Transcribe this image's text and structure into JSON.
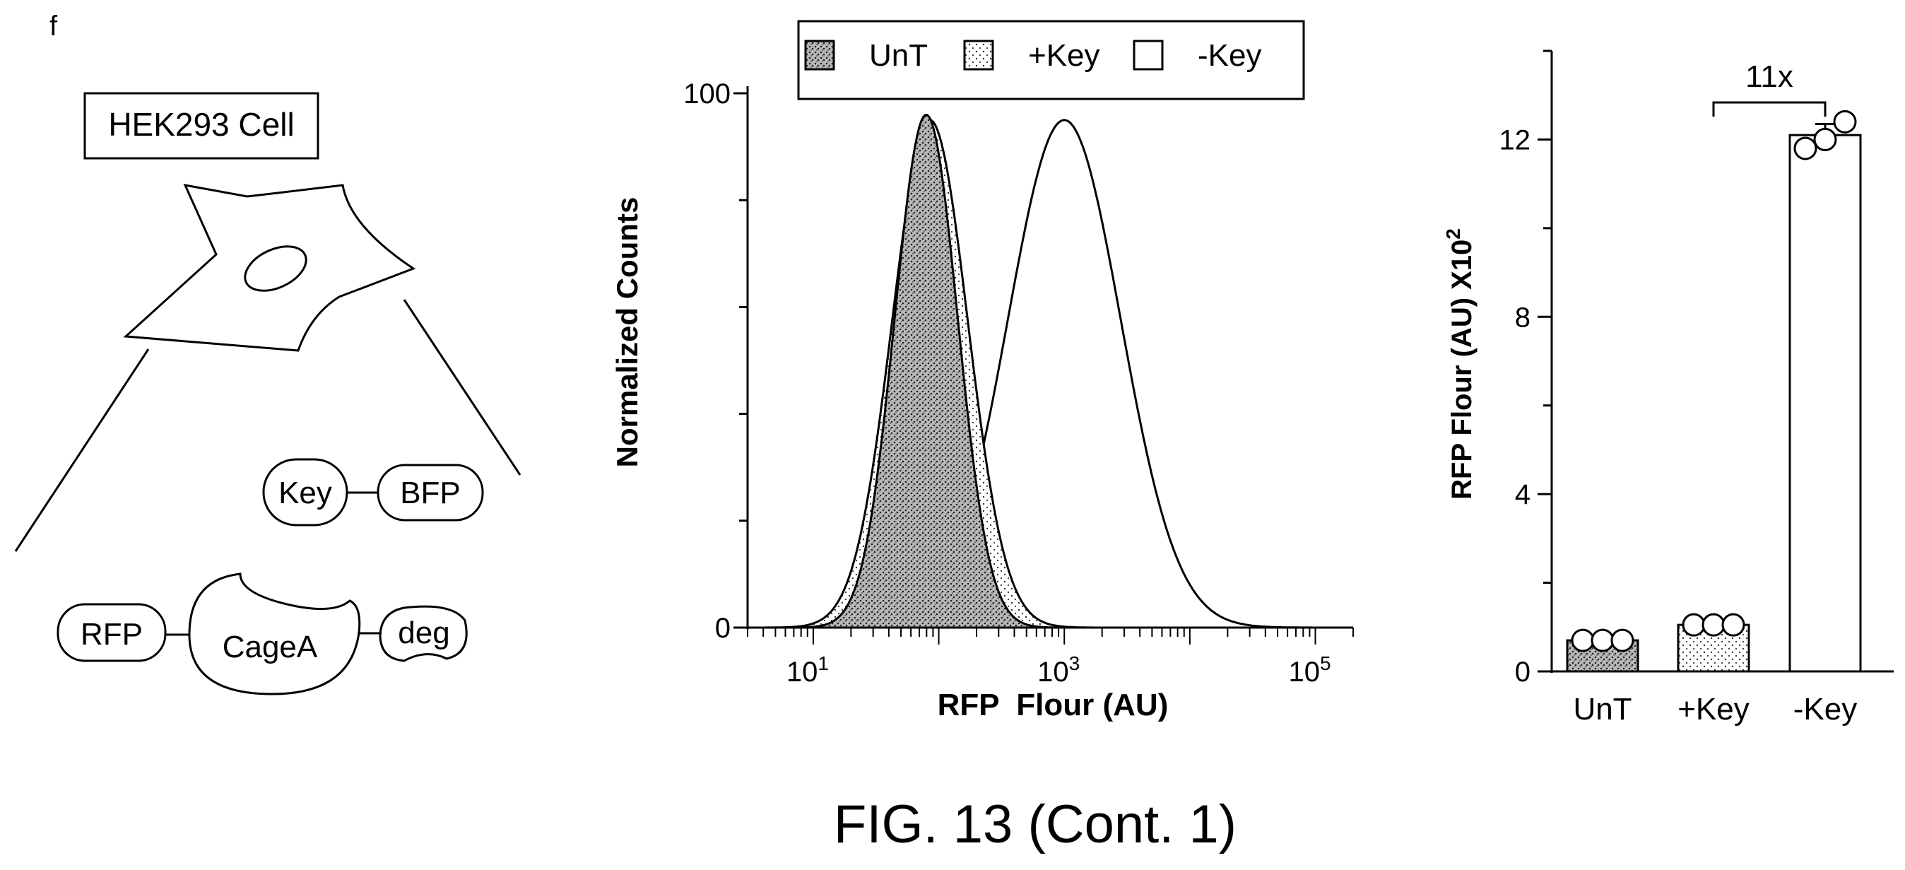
{
  "panel_label": "f",
  "schematic": {
    "cell_label": "HEK293 Cell",
    "key": "Key",
    "bfp": "BFP",
    "rfp": "RFP",
    "cage": "CageA",
    "deg": "deg"
  },
  "figure_caption": "FIG. 13 (Cont. 1)",
  "colors": {
    "ink": "#000000",
    "background": "#ffffff",
    "fill_stipple": "#bdbdbd"
  },
  "chart_data": [
    {
      "type": "area",
      "xlabel": "RFP  Flour (AU)",
      "ylabel": "Normalized Counts",
      "xscale": "log",
      "xlim": [
        3,
        200000
      ],
      "ylim": [
        0,
        100
      ],
      "x_ticks": [
        {
          "v": 10,
          "base": "10",
          "exp": "1"
        },
        {
          "v": 1000,
          "base": "10",
          "exp": "3"
        },
        {
          "v": 100000,
          "base": "10",
          "exp": "5"
        }
      ],
      "y_ticks": [
        {
          "v": 0,
          "label": "0"
        },
        {
          "v": 100,
          "label": "100"
        }
      ],
      "legend": {
        "placement": "top",
        "items": [
          {
            "name": "UnT",
            "style": "dense-stipple"
          },
          {
            "name": "+Key",
            "style": "light-stipple"
          },
          {
            "name": "-Key",
            "style": "open"
          }
        ]
      },
      "series": [
        {
          "name": "UnT",
          "style": "dense-stipple",
          "mu_log10": 1.9,
          "sigma_log10": 0.25,
          "peak": 96
        },
        {
          "name": "+Key",
          "style": "light-stipple",
          "mu_log10": 1.93,
          "sigma_log10": 0.3,
          "peak": 95
        },
        {
          "name": "-Key",
          "style": "open",
          "mu_log10": 3.0,
          "sigma_log10": 0.45,
          "peak": 95
        }
      ]
    },
    {
      "type": "bar",
      "categories": [
        "UnT",
        "+Key",
        "-Key"
      ],
      "values": [
        0.7,
        1.05,
        12.1
      ],
      "error": [
        0.05,
        0.05,
        0.25
      ],
      "points": [
        [
          0.7,
          0.7,
          0.7
        ],
        [
          1.05,
          1.05,
          1.05
        ],
        [
          11.8,
          12.0,
          12.4
        ]
      ],
      "ylabel_main": "RFP Flour (AU) X10",
      "ylabel_sup": "2",
      "ylim": [
        0,
        14
      ],
      "y_ticks": [
        {
          "v": 0,
          "label": "0"
        },
        {
          "v": 4,
          "label": "4"
        },
        {
          "v": 8,
          "label": "8"
        },
        {
          "v": 12,
          "label": "12"
        }
      ],
      "annotation": {
        "text": "11x",
        "from": "+Key",
        "to": "-Key"
      }
    }
  ]
}
